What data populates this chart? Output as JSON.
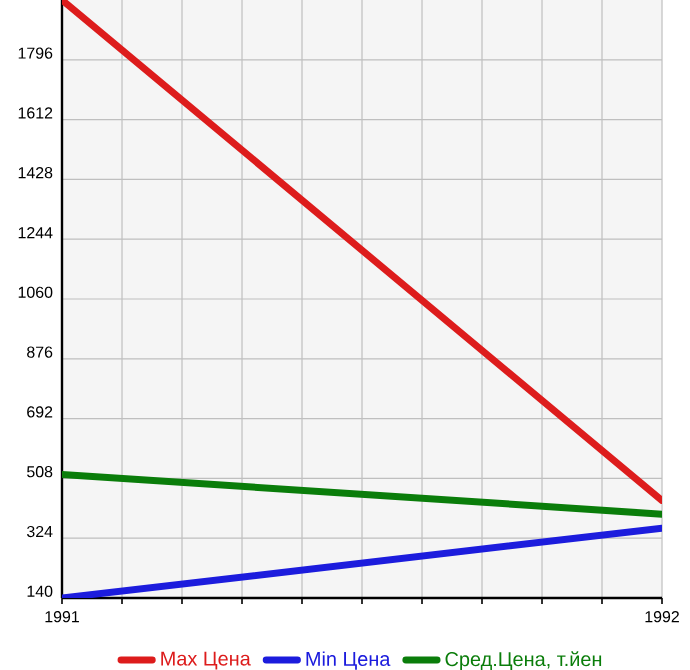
{
  "chart_data": {
    "type": "line",
    "x": [
      1991,
      1992
    ],
    "series": [
      {
        "name": "Max Цена",
        "color": "#dd1c1c",
        "values": [
          1980,
          440
        ]
      },
      {
        "name": "Min Цена",
        "color": "#1c1cdd",
        "values": [
          140,
          355
        ]
      },
      {
        "name": "Сред.Цена, т.йен",
        "color": "#0a7d0a",
        "values": [
          520,
          398
        ]
      }
    ],
    "xlim": [
      1991,
      1992
    ],
    "ylim": [
      140,
      1980
    ],
    "xticks": [
      1991,
      {
        "value": 1991.1,
        "label": null
      },
      {
        "value": 1991.2,
        "label": null
      },
      {
        "value": 1991.3,
        "label": null
      },
      {
        "value": 1991.4,
        "label": null
      },
      {
        "value": 1991.5,
        "label": null
      },
      {
        "value": 1991.6,
        "label": null
      },
      {
        "value": 1991.7,
        "label": null
      },
      {
        "value": 1991.8,
        "label": null
      },
      {
        "value": 1991.9,
        "label": null
      },
      1992
    ],
    "yticks": [
      140,
      324,
      508,
      692,
      876,
      1060,
      1244,
      1428,
      1612,
      1796
    ],
    "grid": true,
    "legend": "bottom",
    "marker": "none",
    "line_style": "solid"
  }
}
